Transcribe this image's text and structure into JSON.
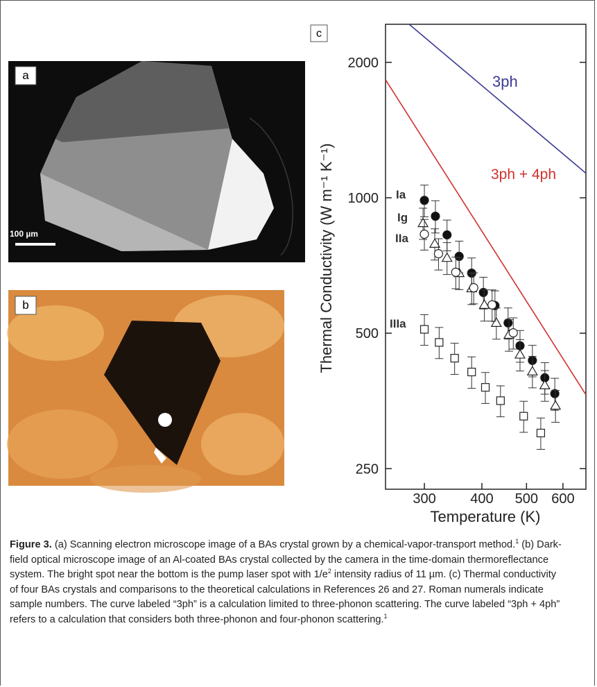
{
  "panels": [
    {
      "label": "a",
      "scale_bar": "100 µm"
    },
    {
      "label": "b"
    },
    {
      "label": "c"
    }
  ],
  "chart_data": {
    "type": "scatter",
    "x_label": "Temperature (K)",
    "y_label": "Thermal Conductivity (W m⁻¹ K⁻¹)",
    "xscale": "log",
    "yscale": "log",
    "xlim": [
      247,
      673
    ],
    "ylim": [
      225,
      2430
    ],
    "xticks": [
      300,
      400,
      500,
      600
    ],
    "yticks": [
      250,
      500,
      1000,
      2000
    ],
    "grid": false,
    "lines": [
      {
        "name": "3ph",
        "color": "#3b3b96",
        "x": [
          278,
          673
        ],
        "values": [
          2430,
          1134
        ]
      },
      {
        "name": "3ph + 4ph",
        "color": "#d0312d",
        "x": [
          247,
          673
        ],
        "values": [
          1830,
          365
        ]
      }
    ],
    "series": [
      {
        "name": "Ia",
        "marker": "circle-filled",
        "x": [
          300,
          317,
          336,
          357,
          380,
          403,
          427,
          456,
          484,
          515,
          548,
          576
        ],
        "values": [
          987,
          910,
          827,
          741,
          680,
          616,
          576,
          527,
          469,
          435,
          398,
          367
        ],
        "errors": [
          80,
          75,
          65,
          60,
          55,
          50,
          45,
          42,
          38,
          35,
          32,
          30
        ]
      },
      {
        "name": "Ig",
        "marker": "triangle",
        "x": [
          298,
          316,
          336,
          357,
          380,
          405,
          430,
          458,
          484,
          515,
          548,
          578
        ],
        "values": [
          878,
          790,
          735,
          680,
          629,
          578,
          527,
          496,
          448,
          411,
          383,
          345
        ],
        "errors": [
          70,
          63,
          60,
          55,
          50,
          46,
          42,
          40,
          36,
          33,
          30,
          28
        ]
      },
      {
        "name": "IIa",
        "marker": "circle-open",
        "x": [
          300,
          322,
          351,
          384,
          421,
          468
        ],
        "values": [
          830,
          751,
          683,
          631,
          578,
          501
        ],
        "errors": [
          65,
          60,
          55,
          50,
          46,
          40
        ]
      },
      {
        "name": "IIIa",
        "marker": "square",
        "x": [
          300,
          323,
          349,
          380,
          407,
          439,
          493,
          537
        ],
        "values": [
          510,
          477,
          440,
          410,
          379,
          354,
          327,
          300
        ],
        "errors": [
          40,
          38,
          35,
          33,
          30,
          28,
          26,
          24
        ]
      }
    ]
  },
  "caption": {
    "label": "Figure 3.",
    "segments": [
      {
        "text": " (a) Scanning electron microscope image of a BAs crystal grown by a chemical-vapor-transport method."
      },
      {
        "sup": "1"
      },
      {
        "text": " (b) Dark-field optical microscope image of an Al-coated BAs crystal collected by the camera in the time-domain thermoreflectance system. The bright spot near the bottom is the pump laser spot with 1/e"
      },
      {
        "sup": "2"
      },
      {
        "text": " intensity radius of 11 µm. (c) Thermal conductivity of four BAs crystals and comparisons to the theoretical calculations in References 26 and 27. Roman numerals indicate sample numbers. The curve labeled “3ph” is a calculation limited to three-phonon scattering. The curve labeled “3ph + 4ph” refers to a calculation that considers both three-phonon and four-phonon scattering."
      },
      {
        "sup": "1"
      }
    ]
  }
}
